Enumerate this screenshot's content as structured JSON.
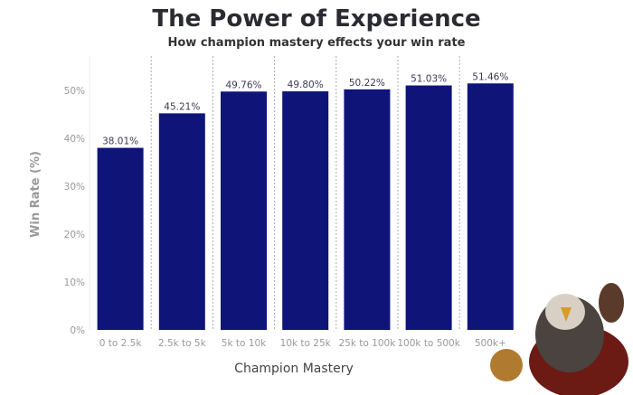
{
  "chart_data": {
    "type": "bar",
    "title": "The Power of Experience",
    "subtitle": "How champion mastery effects your win rate",
    "xlabel": "Champion Mastery",
    "ylabel": "Win Rate (%)",
    "categories": [
      "0 to 2.5k",
      "2.5k to 5k",
      "5k to 10k",
      "10k to 25k",
      "25k to 100k",
      "100k to 500k",
      "500k+"
    ],
    "values": [
      38.01,
      45.21,
      49.76,
      49.8,
      50.22,
      51.03,
      51.46
    ],
    "value_labels": [
      "38.01%",
      "45.21%",
      "49.76%",
      "49.80%",
      "50.22%",
      "51.03%",
      "51.46%"
    ],
    "yticks": [
      "0%",
      "10%",
      "20%",
      "30%",
      "40%",
      "50%"
    ],
    "ytick_values": [
      0,
      10,
      20,
      30,
      40,
      50
    ],
    "ylim": [
      0,
      55
    ],
    "grid": false,
    "bar_color": "#0f1478",
    "decoration": "champion-character-illustration"
  }
}
